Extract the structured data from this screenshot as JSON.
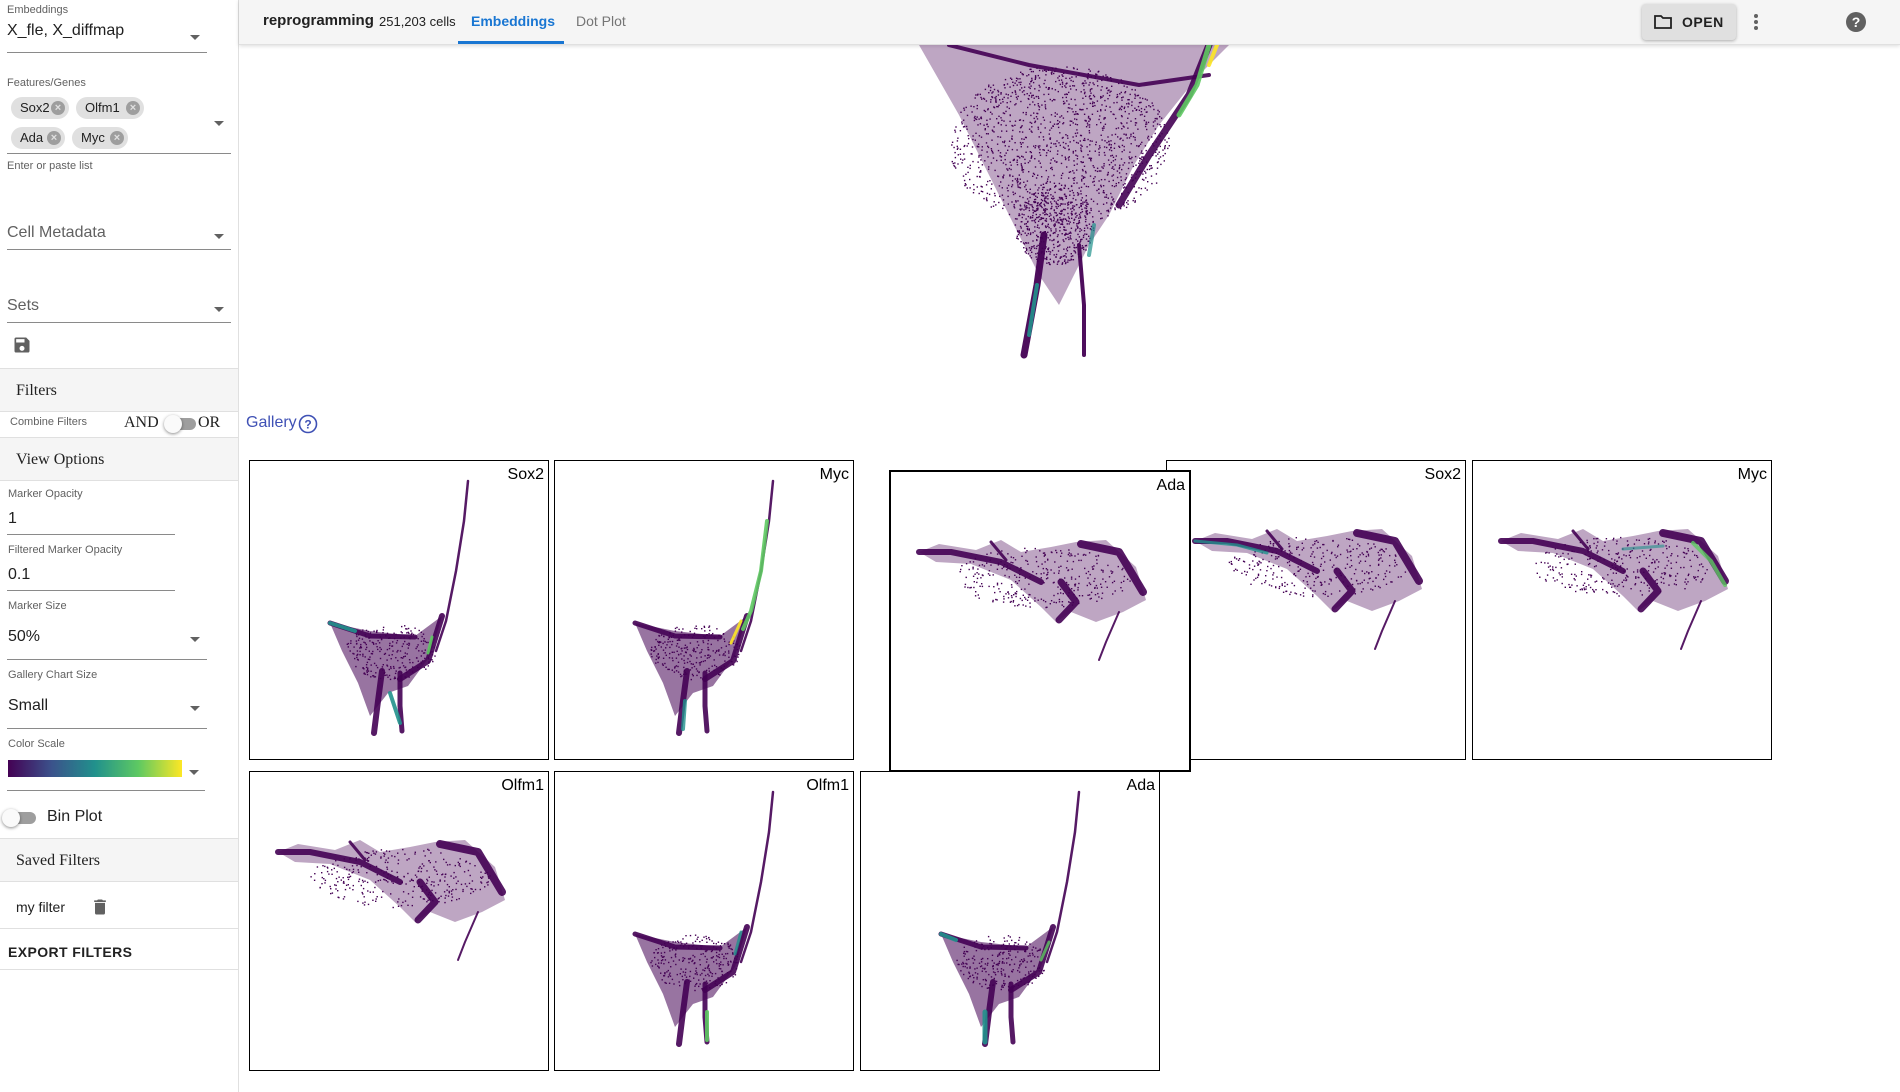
{
  "sidebar": {
    "embeddings": {
      "label": "Embeddings",
      "value": "X_fle, X_diffmap"
    },
    "features": {
      "label": "Features/Genes",
      "chips": [
        "Sox2",
        "Olfm1",
        "Ada",
        "Myc"
      ],
      "hint": "Enter or paste list"
    },
    "cell_metadata": {
      "placeholder": "Cell Metadata"
    },
    "sets": {
      "placeholder": "Sets"
    },
    "filters": {
      "title": "Filters",
      "combine_label": "Combine Filters",
      "and_label": "AND",
      "or_label": "OR"
    },
    "view_options": {
      "title": "View Options",
      "marker_opacity": {
        "label": "Marker Opacity",
        "value": "1"
      },
      "filtered_marker_opacity": {
        "label": "Filtered Marker Opacity",
        "value": "0.1"
      },
      "marker_size": {
        "label": "Marker Size",
        "value": "50%"
      },
      "gallery_chart_size": {
        "label": "Gallery Chart Size",
        "value": "Small"
      },
      "color_scale": {
        "label": "Color Scale",
        "colors": [
          "#440154",
          "#3b528b",
          "#21918c",
          "#5ec962",
          "#fde725"
        ]
      },
      "bin_plot": {
        "label": "Bin Plot",
        "enabled": false
      }
    },
    "saved_filters": {
      "title": "Saved Filters",
      "items": [
        {
          "name": "my filter"
        }
      ],
      "export_label": "EXPORT FILTERS"
    }
  },
  "topbar": {
    "dataset_name": "reprogramming",
    "cell_count": "251,203 cells",
    "tabs": [
      {
        "label": "Embeddings",
        "active": true
      },
      {
        "label": "Dot Plot",
        "active": false
      }
    ],
    "open_label": "OPEN"
  },
  "gallery": {
    "label": "Gallery",
    "charts": [
      {
        "title": "Sox2",
        "embedding": "diffmap"
      },
      {
        "title": "Myc",
        "embedding": "diffmap"
      },
      {
        "title": "Ada",
        "embedding": "fle"
      },
      {
        "title": "Sox2",
        "embedding": "fle"
      },
      {
        "title": "Myc",
        "embedding": "fle"
      },
      {
        "title": "Olfm1",
        "embedding": "fle"
      },
      {
        "title": "Olfm1",
        "embedding": "diffmap"
      },
      {
        "title": "Ada",
        "embedding": "diffmap"
      }
    ]
  },
  "colors": {
    "accent": "#1976d2",
    "viridis_dark": "#440154",
    "viridis_mid": "#21918c",
    "viridis_light": "#fde725"
  }
}
